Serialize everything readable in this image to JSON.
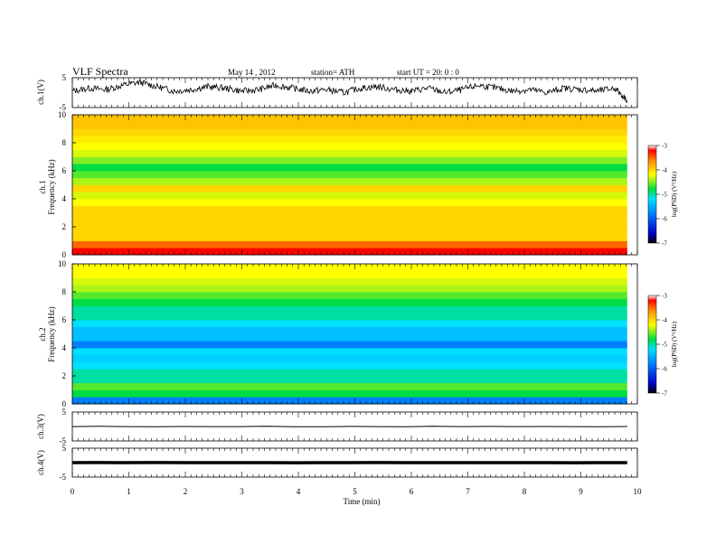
{
  "header": {
    "title": "VLF  Spectra",
    "date": "May 14 , 2012",
    "station": "station= ATH",
    "start": "start  UT =   20: 0  : 0"
  },
  "chart_data": [
    {
      "type": "line",
      "panel": "ch1-waveform",
      "ylabel": "ch.1(V)",
      "ylim": [
        -5,
        5
      ],
      "ytick_labels": [
        "5",
        "-5"
      ],
      "xlim": [
        0,
        10
      ],
      "x_end": 9.82,
      "series": [
        {
          "x": [
            0,
            0.3,
            0.6,
            0.9,
            1.2,
            1.5,
            1.8,
            2.1,
            2.4,
            2.7,
            3.0,
            3.3,
            3.6,
            3.9,
            4.2,
            4.5,
            4.8,
            5.1,
            5.4,
            5.7,
            6.0,
            6.3,
            6.6,
            6.9,
            7.2,
            7.5,
            7.8,
            8.1,
            8.4,
            8.7,
            9.0,
            9.3,
            9.6,
            9.82
          ],
          "y": [
            0.5,
            1.5,
            1.0,
            2.5,
            3.5,
            2.0,
            0.5,
            1.0,
            2.0,
            1.5,
            0.5,
            1.0,
            2.5,
            1.5,
            0.5,
            1.0,
            0.0,
            1.5,
            2.0,
            1.0,
            0.5,
            1.5,
            0.0,
            1.0,
            2.5,
            1.5,
            0.5,
            1.0,
            0.0,
            1.5,
            1.0,
            0.5,
            1.5,
            -2.5
          ]
        }
      ]
    },
    {
      "type": "heatmap",
      "panel": "ch1-spectrogram",
      "ylabel": "ch.1\nFrequency  (kHz)",
      "ylim": [
        0,
        10
      ],
      "ytick_labels": [
        "0",
        "2",
        "4",
        "6",
        "8",
        "10"
      ],
      "xlim": [
        0,
        10
      ],
      "colorbar": {
        "label": "log(PSD) (V²/Hz)",
        "range": [
          -7,
          -3
        ],
        "tick_labels": [
          "-3",
          "-4",
          "-5",
          "-6",
          "-7"
        ]
      },
      "freq_kHz": [
        0.25,
        0.75,
        1.25,
        1.75,
        2.25,
        2.75,
        3.25,
        3.75,
        4.25,
        4.75,
        5.25,
        5.75,
        6.25,
        6.75,
        7.25,
        7.75,
        8.25,
        8.75,
        9.25,
        9.75
      ],
      "mean_log_psd": [
        -3.2,
        -3.5,
        -4.0,
        -4.0,
        -4.0,
        -4.0,
        -4.0,
        -4.2,
        -4.3,
        -4.0,
        -4.4,
        -4.6,
        -4.8,
        -4.5,
        -4.3,
        -4.2,
        -4.1,
        -4.0,
        -3.9,
        -3.9
      ]
    },
    {
      "type": "heatmap",
      "panel": "ch2-spectrogram",
      "ylabel": "ch.2\nFrequency  (kHz)",
      "ylim": [
        0,
        10
      ],
      "ytick_labels": [
        "0",
        "2",
        "4",
        "6",
        "8",
        "10"
      ],
      "xlim": [
        0,
        10
      ],
      "colorbar": {
        "label": "log(PSD) (V²/Hz)",
        "range": [
          -7,
          -3
        ],
        "tick_labels": [
          "-3",
          "-4",
          "-5",
          "-6",
          "-7"
        ]
      },
      "freq_kHz": [
        0.25,
        0.75,
        1.25,
        1.75,
        2.25,
        2.75,
        3.25,
        3.75,
        4.25,
        4.75,
        5.25,
        5.75,
        6.25,
        6.75,
        7.25,
        7.75,
        8.25,
        8.75,
        9.25,
        9.75
      ],
      "mean_log_psd": [
        -5.8,
        -4.8,
        -4.6,
        -5.0,
        -5.0,
        -5.2,
        -5.3,
        -5.2,
        -5.8,
        -5.4,
        -5.4,
        -5.2,
        -5.0,
        -5.0,
        -4.8,
        -4.6,
        -4.4,
        -4.3,
        -4.2,
        -4.2
      ]
    },
    {
      "type": "line",
      "panel": "ch3-waveform",
      "ylabel": "ch.3(V)",
      "ylim": [
        -5,
        5
      ],
      "ytick_labels": [
        "5",
        "-5"
      ],
      "xlim": [
        0,
        10
      ],
      "x_end": 9.82,
      "series": [
        {
          "x": [
            0,
            9.82
          ],
          "y": [
            0.0,
            0.0
          ]
        }
      ]
    },
    {
      "type": "line",
      "panel": "ch4-waveform",
      "ylabel": "ch.4(V)",
      "ylim": [
        -5,
        5
      ],
      "ytick_labels": [
        "5",
        "-5"
      ],
      "xlabel": "Time  (min)",
      "xlim": [
        0,
        10
      ],
      "xtick_labels": [
        "0",
        "1",
        "2",
        "3",
        "4",
        "5",
        "6",
        "7",
        "8",
        "9",
        "10"
      ],
      "x_end": 9.82,
      "series": [
        {
          "x": [
            0,
            9.82
          ],
          "y": [
            0.0,
            0.0
          ]
        }
      ]
    }
  ]
}
